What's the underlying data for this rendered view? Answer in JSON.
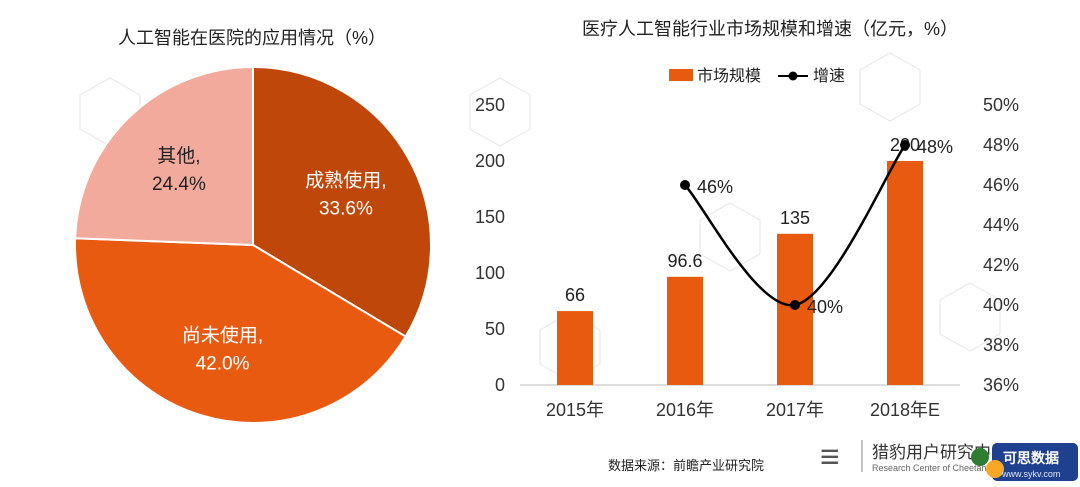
{
  "chart_data": [
    {
      "type": "pie",
      "title": "人工智能在医院的应用情况（%）",
      "slices": [
        {
          "name": "成熟使用,",
          "value": 33.6,
          "label": "33.6%",
          "color": "#c0470a"
        },
        {
          "name": "尚未使用,",
          "value": 42.0,
          "label": "42.0%",
          "color": "#e85a10"
        },
        {
          "name": "其他,",
          "value": 24.4,
          "label": "24.4%",
          "color": "#f2aa9c"
        }
      ]
    },
    {
      "type": "bar+line",
      "title": "医疗人工智能行业市场规模和增速（亿元，%）",
      "categories": [
        "2015年",
        "2016年",
        "2017年",
        "2018年E"
      ],
      "ylim": [
        0,
        250
      ],
      "yticks": [
        "0",
        "50",
        "100",
        "150",
        "200",
        "250"
      ],
      "y2lim": [
        36,
        50
      ],
      "y2ticks": [
        "36%",
        "38%",
        "40%",
        "42%",
        "44%",
        "46%",
        "48%",
        "50%"
      ],
      "legend": "top-center",
      "series": [
        {
          "name": "市场规模",
          "kind": "bar",
          "color": "#e85a10",
          "values": [
            66,
            96.6,
            135,
            200
          ],
          "labels": [
            "66",
            "96.6",
            "135",
            "200"
          ]
        },
        {
          "name": "增速",
          "kind": "line",
          "color": "#000000",
          "values": [
            null,
            46,
            40,
            48
          ],
          "labels": [
            "",
            "46%",
            "40%",
            "48%"
          ]
        }
      ]
    }
  ],
  "footer": {
    "source": "数据来源：前瞻产业研究院",
    "logo_text": "猎豹用户研究中心",
    "logo_sub": "Research Center of Cheetah Mobile",
    "badge_text": "可思数据",
    "badge_url": "www.sykv.com"
  },
  "colors": {
    "bar": "#e85a10",
    "line": "#000000"
  }
}
